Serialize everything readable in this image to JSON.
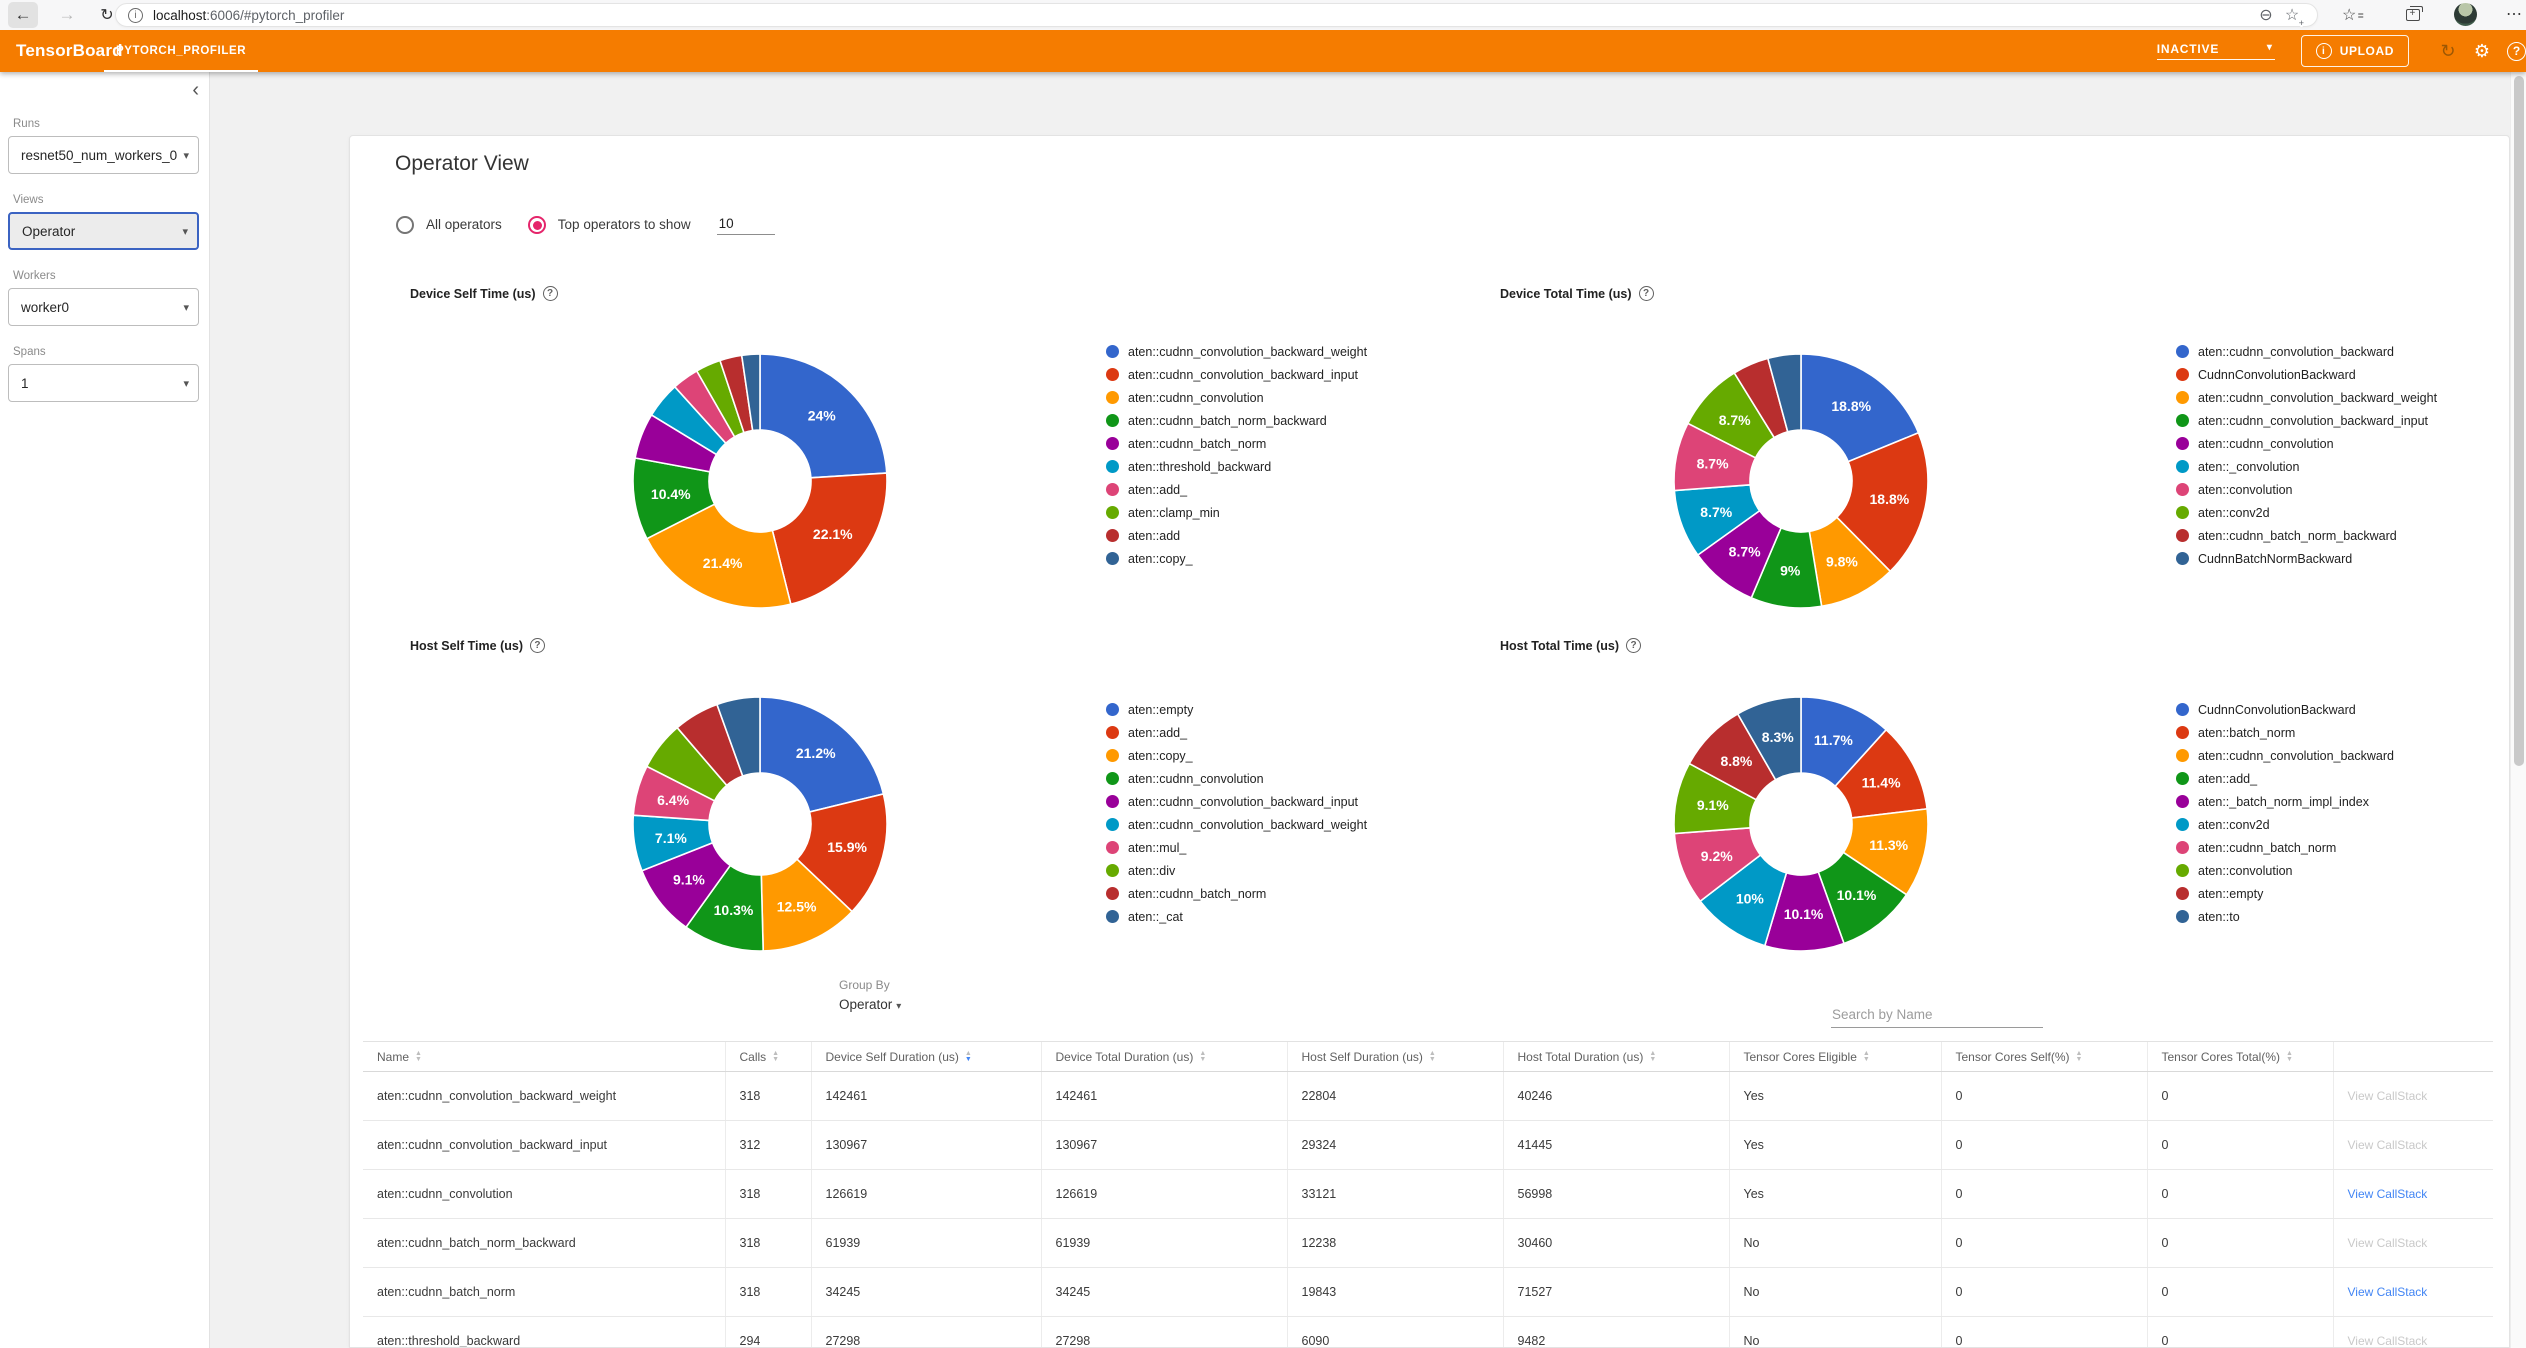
{
  "browser": {
    "url_host": "localhost",
    "url_rest": ":6006/#pytorch_profiler"
  },
  "header": {
    "app_title": "TensorBoard",
    "tab": "PYTORCH_PROFILER",
    "status_dropdown": "INACTIVE",
    "upload_label": "UPLOAD"
  },
  "sidebar": {
    "sections": [
      {
        "label": "Runs",
        "value": "resnet50_num_workers_0"
      },
      {
        "label": "Views",
        "value": "Operator"
      },
      {
        "label": "Workers",
        "value": "worker0"
      },
      {
        "label": "Spans",
        "value": "1"
      }
    ]
  },
  "main": {
    "title": "Operator View",
    "radio_all": "All operators",
    "radio_top": "Top operators to show",
    "top_count": "10",
    "group_by_label": "Group By",
    "group_by_value": "Operator",
    "search_placeholder": "Search by Name"
  },
  "palette": [
    "#3366CC",
    "#DC3912",
    "#FF9900",
    "#109618",
    "#990099",
    "#0099C6",
    "#DD4477",
    "#66AA00",
    "#B82E2E",
    "#316395"
  ],
  "chart_data": [
    {
      "type": "pie",
      "title": "Device Self Time (us)",
      "legend_position": "right",
      "series": [
        {
          "name": "aten::cudnn_convolution_backward_weight",
          "value": 24.0,
          "label": "24%"
        },
        {
          "name": "aten::cudnn_convolution_backward_input",
          "value": 22.1,
          "label": "22.1%"
        },
        {
          "name": "aten::cudnn_convolution",
          "value": 21.4,
          "label": "21.4%"
        },
        {
          "name": "aten::cudnn_batch_norm_backward",
          "value": 10.4,
          "label": "10.4%"
        },
        {
          "name": "aten::cudnn_batch_norm",
          "value": 5.8,
          "label": ""
        },
        {
          "name": "aten::threshold_backward",
          "value": 4.6,
          "label": ""
        },
        {
          "name": "aten::add_",
          "value": 3.4,
          "label": ""
        },
        {
          "name": "aten::clamp_min",
          "value": 3.2,
          "label": ""
        },
        {
          "name": "aten::add",
          "value": 2.8,
          "label": ""
        },
        {
          "name": "aten::copy_",
          "value": 2.3,
          "label": ""
        }
      ]
    },
    {
      "type": "pie",
      "title": "Device Total Time (us)",
      "legend_position": "right",
      "series": [
        {
          "name": "aten::cudnn_convolution_backward",
          "value": 18.8,
          "label": "18.8%"
        },
        {
          "name": "CudnnConvolutionBackward",
          "value": 18.8,
          "label": "18.8%"
        },
        {
          "name": "aten::cudnn_convolution_backward_weight",
          "value": 9.8,
          "label": "9.8%"
        },
        {
          "name": "aten::cudnn_convolution_backward_input",
          "value": 9.0,
          "label": "9%"
        },
        {
          "name": "aten::cudnn_convolution",
          "value": 8.7,
          "label": "8.7%"
        },
        {
          "name": "aten::_convolution",
          "value": 8.7,
          "label": "8.7%"
        },
        {
          "name": "aten::convolution",
          "value": 8.7,
          "label": "8.7%"
        },
        {
          "name": "aten::conv2d",
          "value": 8.7,
          "label": "8.7%"
        },
        {
          "name": "aten::cudnn_batch_norm_backward",
          "value": 4.6,
          "label": ""
        },
        {
          "name": "CudnnBatchNormBackward",
          "value": 4.2,
          "label": ""
        }
      ]
    },
    {
      "type": "pie",
      "title": "Host Self Time (us)",
      "legend_position": "right",
      "series": [
        {
          "name": "aten::empty",
          "value": 21.2,
          "label": "21.2%"
        },
        {
          "name": "aten::add_",
          "value": 15.9,
          "label": "15.9%"
        },
        {
          "name": "aten::copy_",
          "value": 12.5,
          "label": "12.5%"
        },
        {
          "name": "aten::cudnn_convolution",
          "value": 10.3,
          "label": "10.3%"
        },
        {
          "name": "aten::cudnn_convolution_backward_input",
          "value": 9.1,
          "label": "9.1%"
        },
        {
          "name": "aten::cudnn_convolution_backward_weight",
          "value": 7.1,
          "label": "7.1%"
        },
        {
          "name": "aten::mul_",
          "value": 6.4,
          "label": "6.4%"
        },
        {
          "name": "aten::div",
          "value": 6.2,
          "label": ""
        },
        {
          "name": "aten::cudnn_batch_norm",
          "value": 5.8,
          "label": ""
        },
        {
          "name": "aten::_cat",
          "value": 5.5,
          "label": ""
        }
      ]
    },
    {
      "type": "pie",
      "title": "Host Total Time (us)",
      "legend_position": "right",
      "series": [
        {
          "name": "CudnnConvolutionBackward",
          "value": 11.7,
          "label": "11.7%"
        },
        {
          "name": "aten::batch_norm",
          "value": 11.4,
          "label": "11.4%"
        },
        {
          "name": "aten::cudnn_convolution_backward",
          "value": 11.3,
          "label": "11.3%"
        },
        {
          "name": "aten::add_",
          "value": 10.1,
          "label": "10.1%"
        },
        {
          "name": "aten::_batch_norm_impl_index",
          "value": 10.1,
          "label": "10.1%"
        },
        {
          "name": "aten::conv2d",
          "value": 10.0,
          "label": "10%"
        },
        {
          "name": "aten::cudnn_batch_norm",
          "value": 9.2,
          "label": "9.2%"
        },
        {
          "name": "aten::convolution",
          "value": 9.1,
          "label": "9.1%"
        },
        {
          "name": "aten::empty",
          "value": 8.8,
          "label": "8.8%"
        },
        {
          "name": "aten::to",
          "value": 8.3,
          "label": "8.3%"
        }
      ]
    }
  ],
  "table": {
    "columns": [
      "Name",
      "Calls",
      "Device Self Duration (us)",
      "Device Total Duration (us)",
      "Host Self Duration (us)",
      "Host Total Duration (us)",
      "Tensor Cores Eligible",
      "Tensor Cores Self(%)",
      "Tensor Cores Total(%)",
      ""
    ],
    "sorted_column_index": 2,
    "link_label": "View CallStack",
    "rows": [
      {
        "cells": [
          "aten::cudnn_convolution_backward_weight",
          "318",
          "142461",
          "142461",
          "22804",
          "40246",
          "Yes",
          "0",
          "0"
        ],
        "link_active": false
      },
      {
        "cells": [
          "aten::cudnn_convolution_backward_input",
          "312",
          "130967",
          "130967",
          "29324",
          "41445",
          "Yes",
          "0",
          "0"
        ],
        "link_active": false
      },
      {
        "cells": [
          "aten::cudnn_convolution",
          "318",
          "126619",
          "126619",
          "33121",
          "56998",
          "Yes",
          "0",
          "0"
        ],
        "link_active": true
      },
      {
        "cells": [
          "aten::cudnn_batch_norm_backward",
          "318",
          "61939",
          "61939",
          "12238",
          "30460",
          "No",
          "0",
          "0"
        ],
        "link_active": false
      },
      {
        "cells": [
          "aten::cudnn_batch_norm",
          "318",
          "34245",
          "34245",
          "19843",
          "71527",
          "No",
          "0",
          "0"
        ],
        "link_active": true
      },
      {
        "cells": [
          "aten::threshold_backward",
          "294",
          "27298",
          "27298",
          "6090",
          "9482",
          "No",
          "0",
          "0"
        ],
        "link_active": false
      }
    ]
  }
}
